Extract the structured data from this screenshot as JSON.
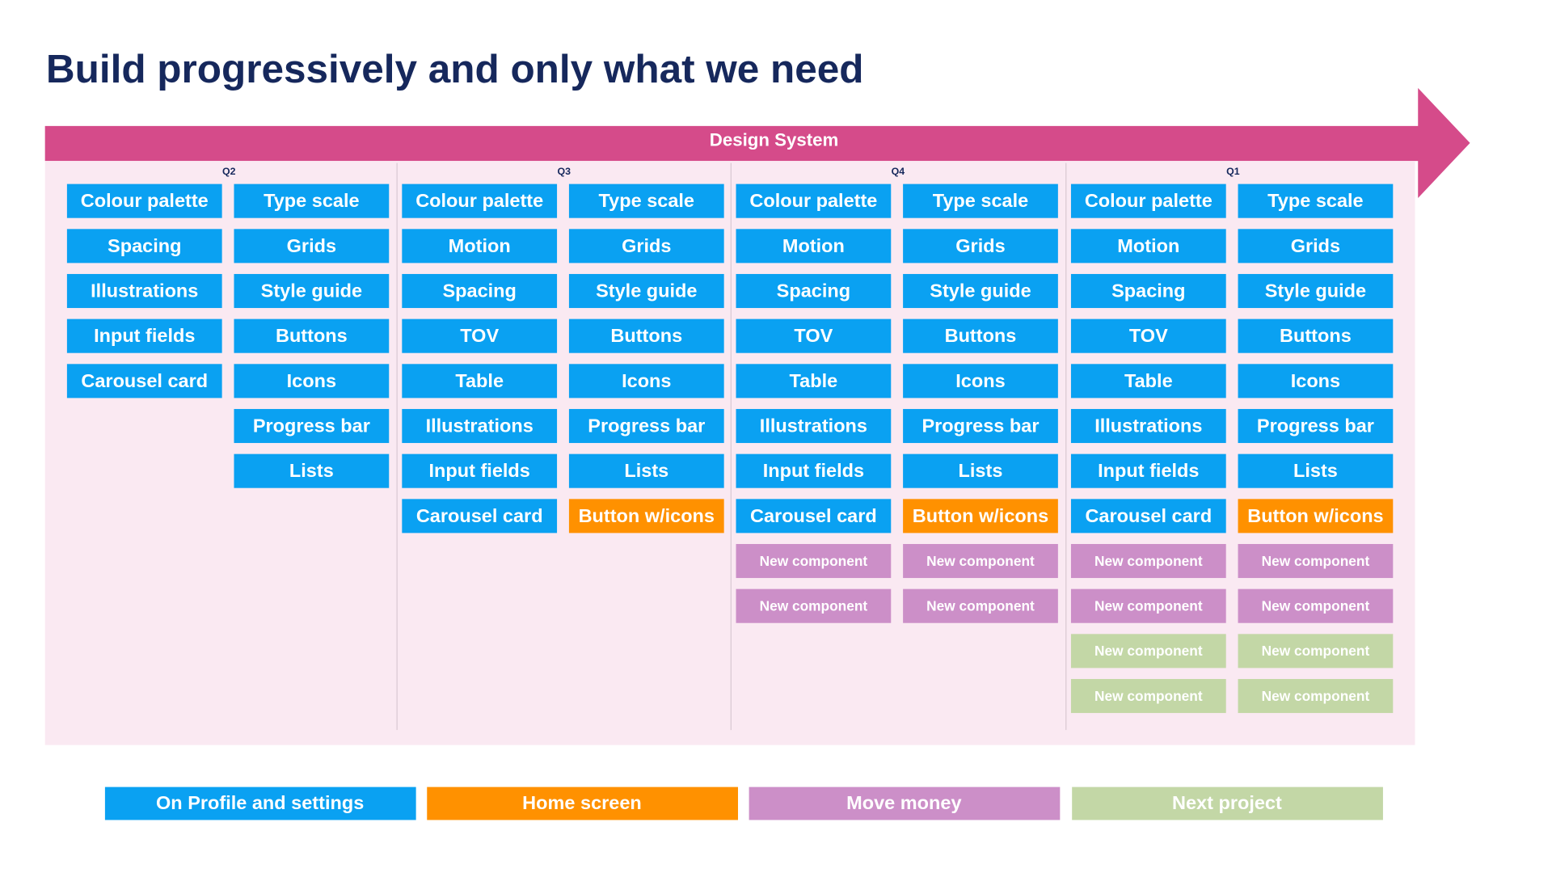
{
  "header": {
    "title": "Build progressively and only what we need",
    "banner": "Design System",
    "banner_color": "#d54b8a"
  },
  "quarters": [
    {
      "label": "Q2",
      "columns": [
        [
          {
            "label": "Colour palette",
            "color": "#0aa1f2"
          },
          {
            "label": "Spacing",
            "color": "#0aa1f2"
          },
          {
            "label": "Illustrations",
            "color": "#0aa1f2"
          },
          {
            "label": "Input fields",
            "color": "#0aa1f2"
          },
          {
            "label": "Carousel card",
            "color": "#0aa1f2"
          }
        ],
        [
          {
            "label": "Type scale",
            "color": "#0aa1f2"
          },
          {
            "label": "Grids",
            "color": "#0aa1f2"
          },
          {
            "label": "Style guide",
            "color": "#0aa1f2"
          },
          {
            "label": "Buttons",
            "color": "#0aa1f2"
          },
          {
            "label": "Icons",
            "color": "#0aa1f2"
          },
          {
            "label": "Progress bar",
            "color": "#0aa1f2"
          },
          {
            "label": "Lists",
            "color": "#0aa1f2"
          }
        ]
      ]
    },
    {
      "label": "Q3",
      "columns": [
        [
          {
            "label": "Colour palette",
            "color": "#0aa1f2"
          },
          {
            "label": "Motion",
            "color": "#0aa1f2"
          },
          {
            "label": "Spacing",
            "color": "#0aa1f2"
          },
          {
            "label": "TOV",
            "color": "#0aa1f2"
          },
          {
            "label": "Table",
            "color": "#0aa1f2"
          },
          {
            "label": "Illustrations",
            "color": "#0aa1f2"
          },
          {
            "label": "Input fields",
            "color": "#0aa1f2"
          },
          {
            "label": "Carousel card",
            "color": "#0aa1f2"
          }
        ],
        [
          {
            "label": "Type scale",
            "color": "#0aa1f2"
          },
          {
            "label": "Grids",
            "color": "#0aa1f2"
          },
          {
            "label": "Style guide",
            "color": "#0aa1f2"
          },
          {
            "label": "Buttons",
            "color": "#0aa1f2"
          },
          {
            "label": "Icons",
            "color": "#0aa1f2"
          },
          {
            "label": "Progress bar",
            "color": "#0aa1f2"
          },
          {
            "label": "Lists",
            "color": "#0aa1f2"
          },
          {
            "label": "Button w/icons",
            "color": "#ff9100"
          }
        ]
      ]
    },
    {
      "label": "Q4",
      "columns": [
        [
          {
            "label": "Colour palette",
            "color": "#0aa1f2"
          },
          {
            "label": "Motion",
            "color": "#0aa1f2"
          },
          {
            "label": "Spacing",
            "color": "#0aa1f2"
          },
          {
            "label": "TOV",
            "color": "#0aa1f2"
          },
          {
            "label": "Table",
            "color": "#0aa1f2"
          },
          {
            "label": "Illustrations",
            "color": "#0aa1f2"
          },
          {
            "label": "Input fields",
            "color": "#0aa1f2"
          },
          {
            "label": "Carousel card",
            "color": "#0aa1f2"
          },
          {
            "label": "New component",
            "color": "#cc8fc8"
          },
          {
            "label": "New component",
            "color": "#cc8fc8"
          }
        ],
        [
          {
            "label": "Type scale",
            "color": "#0aa1f2"
          },
          {
            "label": "Grids",
            "color": "#0aa1f2"
          },
          {
            "label": "Style guide",
            "color": "#0aa1f2"
          },
          {
            "label": "Buttons",
            "color": "#0aa1f2"
          },
          {
            "label": "Icons",
            "color": "#0aa1f2"
          },
          {
            "label": "Progress bar",
            "color": "#0aa1f2"
          },
          {
            "label": "Lists",
            "color": "#0aa1f2"
          },
          {
            "label": "Button w/icons",
            "color": "#ff9100"
          },
          {
            "label": "New component",
            "color": "#cc8fc8"
          },
          {
            "label": "New component",
            "color": "#cc8fc8"
          }
        ]
      ]
    },
    {
      "label": "Q1",
      "columns": [
        [
          {
            "label": "Colour palette",
            "color": "#0aa1f2"
          },
          {
            "label": "Motion",
            "color": "#0aa1f2"
          },
          {
            "label": "Spacing",
            "color": "#0aa1f2"
          },
          {
            "label": "TOV",
            "color": "#0aa1f2"
          },
          {
            "label": "Table",
            "color": "#0aa1f2"
          },
          {
            "label": "Illustrations",
            "color": "#0aa1f2"
          },
          {
            "label": "Input fields",
            "color": "#0aa1f2"
          },
          {
            "label": "Carousel card",
            "color": "#0aa1f2"
          },
          {
            "label": "New component",
            "color": "#cc8fc8"
          },
          {
            "label": "New component",
            "color": "#cc8fc8"
          },
          {
            "label": "New component",
            "color": "#c3d7a6"
          },
          {
            "label": "New component",
            "color": "#c3d7a6"
          }
        ],
        [
          {
            "label": "Type scale",
            "color": "#0aa1f2"
          },
          {
            "label": "Grids",
            "color": "#0aa1f2"
          },
          {
            "label": "Style guide",
            "color": "#0aa1f2"
          },
          {
            "label": "Buttons",
            "color": "#0aa1f2"
          },
          {
            "label": "Icons",
            "color": "#0aa1f2"
          },
          {
            "label": "Progress bar",
            "color": "#0aa1f2"
          },
          {
            "label": "Lists",
            "color": "#0aa1f2"
          },
          {
            "label": "Button w/icons",
            "color": "#ff9100"
          },
          {
            "label": "New component",
            "color": "#cc8fc8"
          },
          {
            "label": "New component",
            "color": "#cc8fc8"
          },
          {
            "label": "New component",
            "color": "#c3d7a6"
          },
          {
            "label": "New component",
            "color": "#c3d7a6"
          }
        ]
      ]
    }
  ],
  "legend": [
    {
      "label": "On Profile and settings",
      "color": "#0aa1f2"
    },
    {
      "label": "Home screen",
      "color": "#ff9100"
    },
    {
      "label": "Move money",
      "color": "#cc8fc8"
    },
    {
      "label": "Next project",
      "color": "#c3d7a6"
    }
  ]
}
